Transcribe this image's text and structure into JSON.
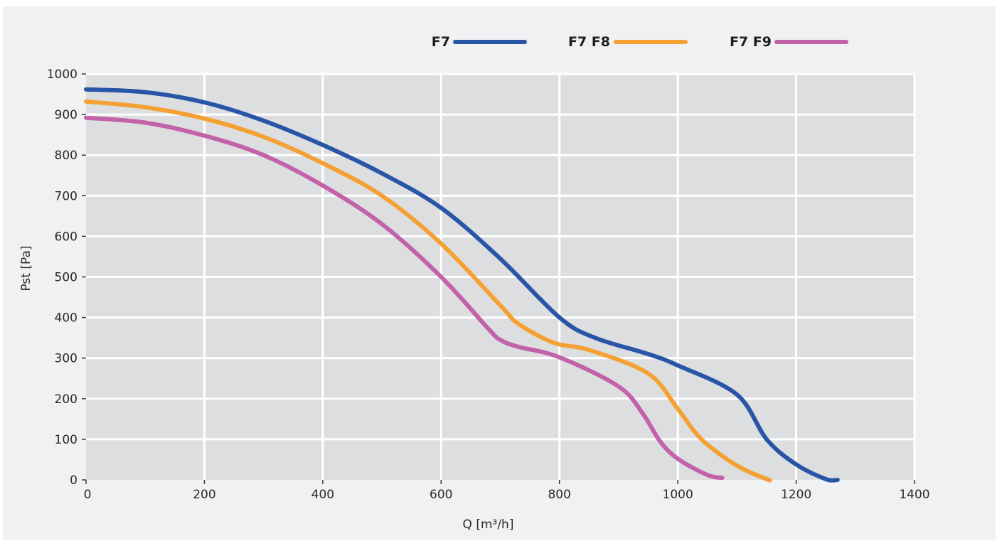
{
  "chart_data": {
    "type": "line",
    "title": "",
    "xlabel": "Q [m³/h]",
    "ylabel": "Pst [Pa]",
    "xlim": [
      0,
      1400
    ],
    "ylim": [
      0,
      1000
    ],
    "xticks": [
      0,
      200,
      400,
      600,
      800,
      1000,
      1200,
      1400
    ],
    "yticks": [
      0,
      100,
      200,
      300,
      400,
      500,
      600,
      700,
      800,
      900,
      1000
    ],
    "grid": true,
    "legend_position": "top",
    "series": [
      {
        "name": "F7",
        "color": "#2855a5",
        "points": [
          [
            0,
            962
          ],
          [
            100,
            955
          ],
          [
            200,
            930
          ],
          [
            300,
            885
          ],
          [
            400,
            825
          ],
          [
            500,
            755
          ],
          [
            600,
            670
          ],
          [
            700,
            545
          ],
          [
            800,
            400
          ],
          [
            860,
            350
          ],
          [
            950,
            310
          ],
          [
            1000,
            282
          ],
          [
            1100,
            210
          ],
          [
            1150,
            100
          ],
          [
            1200,
            38
          ],
          [
            1250,
            2
          ],
          [
            1270,
            0
          ]
        ]
      },
      {
        "name": "F7 F8",
        "color": "#f5a032",
        "points": [
          [
            0,
            932
          ],
          [
            100,
            918
          ],
          [
            200,
            890
          ],
          [
            300,
            845
          ],
          [
            400,
            780
          ],
          [
            500,
            700
          ],
          [
            600,
            582
          ],
          [
            700,
            430
          ],
          [
            730,
            385
          ],
          [
            790,
            338
          ],
          [
            850,
            320
          ],
          [
            950,
            262
          ],
          [
            1000,
            175
          ],
          [
            1040,
            100
          ],
          [
            1100,
            35
          ],
          [
            1150,
            2
          ],
          [
            1155,
            0
          ]
        ]
      },
      {
        "name": "F7 F9",
        "color": "#c262a8",
        "points": [
          [
            0,
            892
          ],
          [
            100,
            880
          ],
          [
            200,
            848
          ],
          [
            300,
            800
          ],
          [
            400,
            725
          ],
          [
            500,
            630
          ],
          [
            600,
            500
          ],
          [
            680,
            372
          ],
          [
            700,
            345
          ],
          [
            730,
            328
          ],
          [
            800,
            302
          ],
          [
            900,
            230
          ],
          [
            940,
            165
          ],
          [
            970,
            95
          ],
          [
            1000,
            52
          ],
          [
            1050,
            12
          ],
          [
            1075,
            5
          ]
        ]
      }
    ]
  }
}
